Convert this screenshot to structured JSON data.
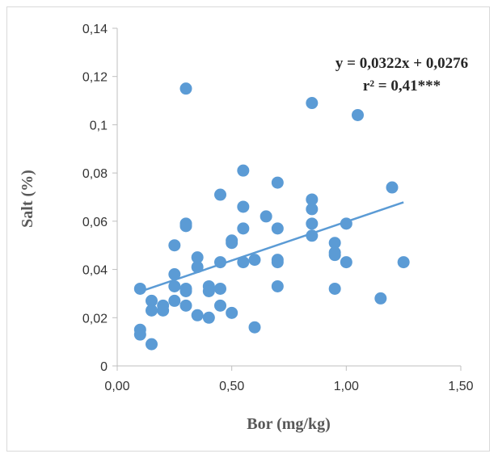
{
  "chart_data": {
    "type": "scatter",
    "title": "",
    "xlabel": "Bor (mg/kg)",
    "ylabel": "Salt (%)",
    "xlim": [
      0,
      1.5
    ],
    "ylim": [
      0,
      0.14
    ],
    "x_ticks": [
      "0,00",
      "0,50",
      "1,00",
      "1,50"
    ],
    "x_tick_values": [
      0,
      0.5,
      1.0,
      1.5
    ],
    "y_ticks": [
      "0",
      "0,02",
      "0,04",
      "0,06",
      "0,08",
      "0,1",
      "0,12",
      "0,14"
    ],
    "y_tick_values": [
      0,
      0.02,
      0.04,
      0.06,
      0.08,
      0.1,
      0.12,
      0.14
    ],
    "grid": false,
    "marker_color": "#5b9bd5",
    "trendline": {
      "slope": 0.0322,
      "intercept": 0.0276,
      "x_range": [
        0.1,
        1.25
      ],
      "color": "#5b9bd5"
    },
    "annotations": {
      "equation": "y = 0,0322x + 0,0276",
      "r_squared": "r² = 0,41***"
    },
    "points": [
      [
        0.1,
        0.032
      ],
      [
        0.1,
        0.015
      ],
      [
        0.1,
        0.013
      ],
      [
        0.15,
        0.027
      ],
      [
        0.15,
        0.023
      ],
      [
        0.15,
        0.009
      ],
      [
        0.2,
        0.025
      ],
      [
        0.2,
        0.023
      ],
      [
        0.25,
        0.05
      ],
      [
        0.25,
        0.038
      ],
      [
        0.25,
        0.033
      ],
      [
        0.25,
        0.027
      ],
      [
        0.3,
        0.115
      ],
      [
        0.3,
        0.059
      ],
      [
        0.3,
        0.058
      ],
      [
        0.3,
        0.032
      ],
      [
        0.3,
        0.031
      ],
      [
        0.3,
        0.025
      ],
      [
        0.35,
        0.045
      ],
      [
        0.35,
        0.041
      ],
      [
        0.35,
        0.021
      ],
      [
        0.4,
        0.033
      ],
      [
        0.4,
        0.031
      ],
      [
        0.4,
        0.02
      ],
      [
        0.45,
        0.071
      ],
      [
        0.45,
        0.043
      ],
      [
        0.45,
        0.032
      ],
      [
        0.45,
        0.025
      ],
      [
        0.5,
        0.052
      ],
      [
        0.5,
        0.051
      ],
      [
        0.5,
        0.022
      ],
      [
        0.55,
        0.081
      ],
      [
        0.55,
        0.066
      ],
      [
        0.55,
        0.057
      ],
      [
        0.55,
        0.043
      ],
      [
        0.6,
        0.044
      ],
      [
        0.6,
        0.016
      ],
      [
        0.65,
        0.062
      ],
      [
        0.7,
        0.076
      ],
      [
        0.7,
        0.057
      ],
      [
        0.7,
        0.044
      ],
      [
        0.7,
        0.043
      ],
      [
        0.7,
        0.033
      ],
      [
        0.85,
        0.109
      ],
      [
        0.85,
        0.069
      ],
      [
        0.85,
        0.065
      ],
      [
        0.85,
        0.059
      ],
      [
        0.85,
        0.054
      ],
      [
        0.95,
        0.051
      ],
      [
        0.95,
        0.047
      ],
      [
        0.95,
        0.046
      ],
      [
        0.95,
        0.032
      ],
      [
        1.0,
        0.059
      ],
      [
        1.0,
        0.043
      ],
      [
        1.05,
        0.104
      ],
      [
        1.15,
        0.028
      ],
      [
        1.2,
        0.074
      ],
      [
        1.25,
        0.043
      ]
    ]
  }
}
